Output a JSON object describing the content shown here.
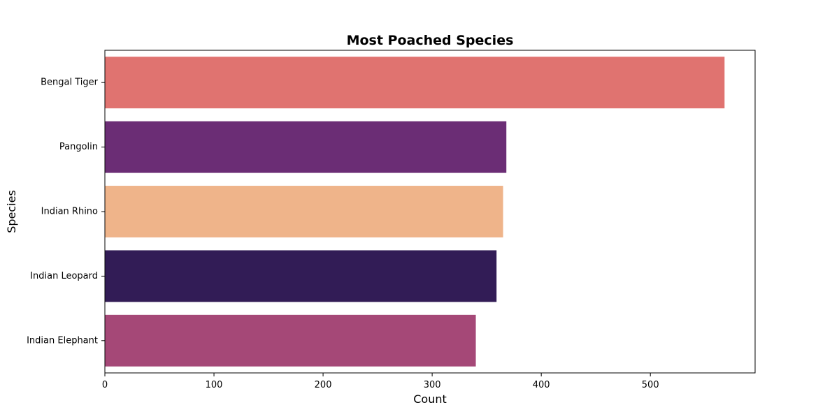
{
  "chart_data": {
    "type": "bar",
    "orientation": "horizontal",
    "title": "Most Poached Species",
    "xlabel": "Count",
    "ylabel": "Species",
    "categories": [
      "Bengal Tiger",
      "Pangolin",
      "Indian Rhino",
      "Indian Leopard",
      "Indian Elephant"
    ],
    "values": [
      568,
      368,
      365,
      359,
      340
    ],
    "colors": [
      "#e07370",
      "#6b2d75",
      "#efb48a",
      "#321c56",
      "#a54877"
    ],
    "xlim": [
      0,
      596
    ],
    "xticks": [
      0,
      100,
      200,
      300,
      400,
      500
    ],
    "grid": false,
    "legend": false
  }
}
